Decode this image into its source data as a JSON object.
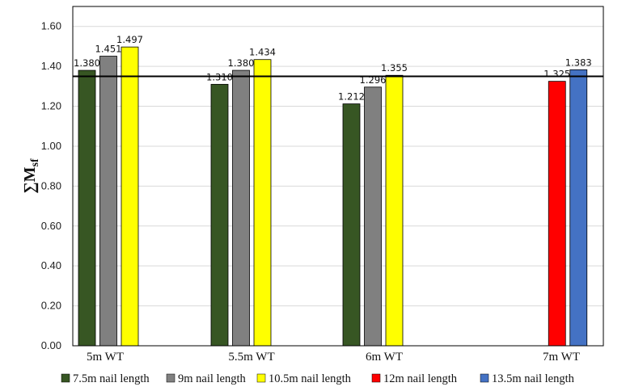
{
  "chart_data": {
    "type": "bar",
    "ylabel_symbol": "∑M",
    "ylabel_subscript": "sf",
    "ylim": [
      0,
      1.7
    ],
    "yticks": [
      "0.00",
      "0.20",
      "0.40",
      "0.60",
      "0.80",
      "1.00",
      "1.20",
      "1.40",
      "1.60"
    ],
    "grid": true,
    "legend_position": "bottom",
    "categories": [
      "5m WT",
      "5.5m WT",
      "6m WT",
      "7m WT"
    ],
    "reference_line": 1.35,
    "series": [
      {
        "name": "7.5m nail length",
        "color": "#375623",
        "values": [
          1.38,
          1.31,
          1.212,
          null
        ],
        "labels": [
          "1.380",
          "1.310",
          "1.212",
          ""
        ]
      },
      {
        "name": "9m nail length",
        "color": "#808080",
        "values": [
          1.451,
          1.38,
          1.296,
          null
        ],
        "labels": [
          "1.451",
          "1.380",
          "1.296",
          ""
        ]
      },
      {
        "name": "10.5m nail length",
        "color": "#ffff00",
        "values": [
          1.497,
          1.434,
          1.355,
          null
        ],
        "labels": [
          "1.497",
          "1.434",
          "1.355",
          ""
        ]
      },
      {
        "name": "12m nail length",
        "color": "#ff0000",
        "values": [
          null,
          null,
          null,
          1.325
        ],
        "labels": [
          "",
          "",
          "",
          "1.325"
        ]
      },
      {
        "name": "13.5m nail length",
        "color": "#4472c4",
        "values": [
          null,
          null,
          null,
          1.383
        ],
        "labels": [
          "",
          "",
          "",
          "1.383"
        ]
      }
    ]
  }
}
